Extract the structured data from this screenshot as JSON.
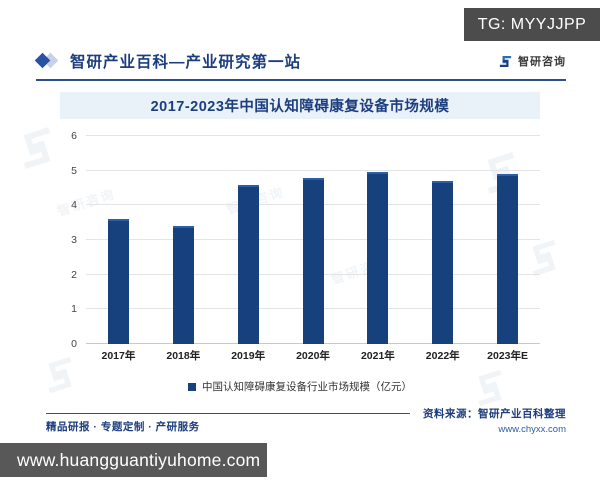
{
  "badge": {
    "text": "TG: MYYJJPP"
  },
  "header": {
    "title": "智研产业百科—产业研究第一站",
    "brand_name": "智研咨询"
  },
  "chart_data": {
    "type": "bar",
    "title": "2017-2023年中国认知障碍康复设备市场规模",
    "categories": [
      "2017年",
      "2018年",
      "2019年",
      "2020年",
      "2021年",
      "2022年",
      "2023年E"
    ],
    "series": [
      {
        "name": "中国认知障碍康复设备行业市场规模（亿元）",
        "values": [
          3.6,
          3.4,
          4.6,
          4.8,
          4.95,
          4.7,
          4.9
        ]
      }
    ],
    "xlabel": "",
    "ylabel": "",
    "ylim": [
      0,
      6
    ],
    "ytick_step": 1,
    "grid": true,
    "legend_position": "bottom",
    "bar_color": "#17417d"
  },
  "footer": {
    "services": "精品研报 · 专题定制 · 产研服务",
    "source_label": "资料来源：智研产业百科整理",
    "source_url": "www.chyxx.com"
  },
  "bottom_bar": {
    "url": "www.huangguantiyuhome.com"
  },
  "watermark": {
    "text": "智研咨询"
  },
  "colors": {
    "accent_navy": "#1d3e7e",
    "bar": "#17417d",
    "badge_bg": "#4c4c4c",
    "bottom_bar_bg": "#585858",
    "title_band_bg": "#e9f1f9",
    "link_blue": "#2b5ea7"
  }
}
